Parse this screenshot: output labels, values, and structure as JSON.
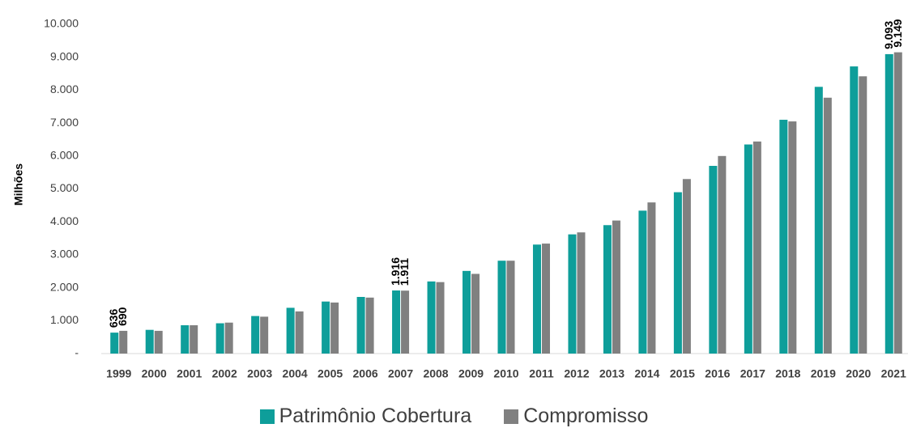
{
  "chart_data": {
    "type": "bar",
    "title": "",
    "xlabel": "",
    "ylabel": "Milhões",
    "ylim": [
      0,
      10000
    ],
    "y_ticks": [
      "-",
      "1.000",
      "2.000",
      "3.000",
      "4.000",
      "5.000",
      "6.000",
      "7.000",
      "8.000",
      "9.000",
      "10.000"
    ],
    "y_tick_values": [
      0,
      1000,
      2000,
      3000,
      4000,
      5000,
      6000,
      7000,
      8000,
      9000,
      10000
    ],
    "grid": false,
    "legend_position": "bottom",
    "categories": [
      "1999",
      "2000",
      "2001",
      "2002",
      "2003",
      "2004",
      "2005",
      "2006",
      "2007",
      "2008",
      "2009",
      "2010",
      "2011",
      "2012",
      "2013",
      "2014",
      "2015",
      "2016",
      "2017",
      "2018",
      "2019",
      "2020",
      "2021"
    ],
    "series": [
      {
        "name": "Patrimônio Cobertura",
        "color": "#0E9E9A",
        "values": [
          636,
          720,
          860,
          920,
          1140,
          1390,
          1580,
          1720,
          1916,
          2190,
          2510,
          2820,
          3310,
          3620,
          3900,
          4340,
          4900,
          5700,
          6350,
          7100,
          8100,
          8720,
          9093
        ]
      },
      {
        "name": "Compromisso",
        "color": "#808080",
        "values": [
          690,
          690,
          860,
          940,
          1120,
          1280,
          1550,
          1700,
          1911,
          2170,
          2420,
          2820,
          3340,
          3680,
          4040,
          4590,
          5300,
          6000,
          6440,
          7050,
          7770,
          8420,
          9149
        ]
      }
    ],
    "data_labels": [
      {
        "series": 0,
        "index": 0,
        "text": "636"
      },
      {
        "series": 1,
        "index": 0,
        "text": "690"
      },
      {
        "series": 0,
        "index": 8,
        "text": "1.916"
      },
      {
        "series": 1,
        "index": 8,
        "text": "1.911"
      },
      {
        "series": 0,
        "index": 22,
        "text": "9.093"
      },
      {
        "series": 1,
        "index": 22,
        "text": "9.149"
      }
    ]
  }
}
